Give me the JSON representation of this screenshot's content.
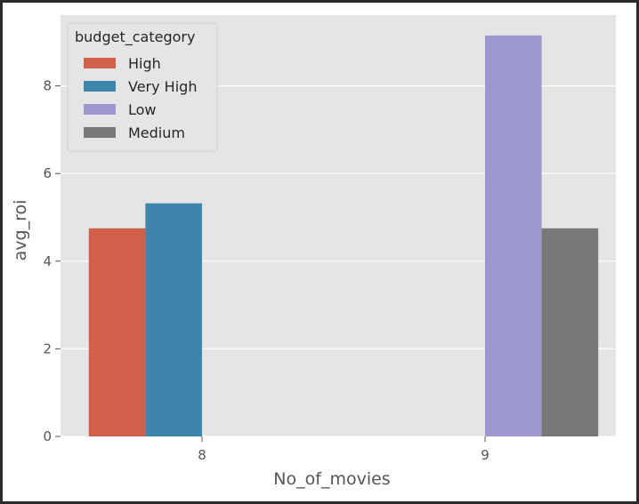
{
  "chart_data": {
    "type": "bar",
    "title": "",
    "xlabel": "No_of_movies",
    "ylabel": "avg_roi",
    "categories": [
      "8",
      "9"
    ],
    "ylim": [
      0,
      9.6
    ],
    "yticks": [
      0,
      2,
      4,
      6,
      8
    ],
    "yticklabels": [
      "0",
      "2",
      "4",
      "6",
      "8"
    ],
    "grid": true,
    "legend_position": "top-left",
    "legend_title": "budget_category",
    "series": [
      {
        "name": "High",
        "color": "#d0604a",
        "values": [
          4.75,
          null
        ]
      },
      {
        "name": "Very High",
        "color": "#3f84ab",
        "values": [
          5.32,
          null
        ]
      },
      {
        "name": "Low",
        "color": "#9d98d1",
        "values": [
          null,
          9.15
        ]
      },
      {
        "name": "Medium",
        "color": "#787878",
        "values": [
          null,
          4.75
        ]
      }
    ],
    "colors": {
      "plot_background": "#e5e5e5",
      "grid": "#ffffff",
      "text": "#555555"
    }
  }
}
